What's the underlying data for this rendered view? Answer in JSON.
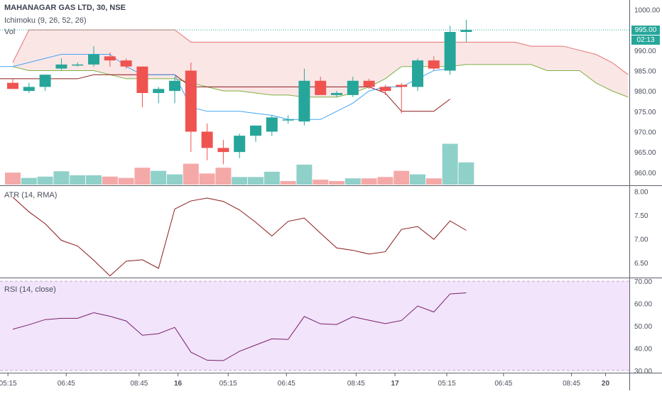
{
  "header": {
    "symbol": "MAHANAGAR GAS LTD, 30, NSE",
    "ichimoku": "Ichimoku (9, 26, 52, 26)",
    "volume": "Vol",
    "atr": "ATR (14, RMA)",
    "rsi": "RSI (14, close)"
  },
  "price_badge": "995.00",
  "countdown_badge": "02:13",
  "colors": {
    "up": "#26a69a",
    "down": "#ef5350",
    "cloud": "#fbe3e3",
    "ichimoku_red": "#e57373",
    "ichimoku_green": "#7cb342",
    "conversion_blue": "#42a5f5",
    "base_dark": "#8b1a1a",
    "atr_line": "#8b1a1a",
    "rsi_line": "#7b1f6a",
    "rsi_band": "#f1e4fb"
  },
  "chart_data": [
    {
      "type": "candlestick",
      "title": "MAHANAGAR GAS LTD, 30, NSE",
      "ylim": [
        957,
        1002
      ],
      "y_ticks": [
        "1000.00",
        "995.00",
        "990.00",
        "985.00",
        "980.00",
        "975.00",
        "970.00",
        "965.00",
        "960.00"
      ],
      "x_ticks": [
        "05:15",
        "06:45",
        "08:45",
        "16",
        "05:15",
        "06:45",
        "08:45",
        "17",
        "05:15",
        "06:45",
        "08:45",
        "20"
      ],
      "candles": [
        {
          "o": 982,
          "h": 983,
          "l": 980.5,
          "c": 980.5
        },
        {
          "o": 980,
          "h": 982,
          "l": 979.5,
          "c": 981
        },
        {
          "o": 981,
          "h": 984,
          "l": 980,
          "c": 984
        },
        {
          "o": 985.5,
          "h": 988,
          "l": 985,
          "c": 986.5
        },
        {
          "o": 986.5,
          "h": 987,
          "l": 986,
          "c": 986.5
        },
        {
          "o": 986.5,
          "h": 991,
          "l": 986,
          "c": 989
        },
        {
          "o": 988.5,
          "h": 989.5,
          "l": 986,
          "c": 987.5
        },
        {
          "o": 987.5,
          "h": 988,
          "l": 985.5,
          "c": 986
        },
        {
          "o": 986,
          "h": 986,
          "l": 976,
          "c": 979.5
        },
        {
          "o": 979.5,
          "h": 981,
          "l": 977,
          "c": 980.5
        },
        {
          "o": 980,
          "h": 983.5,
          "l": 977,
          "c": 982.5
        },
        {
          "o": 985,
          "h": 987,
          "l": 965,
          "c": 970
        },
        {
          "o": 970,
          "h": 972,
          "l": 963,
          "c": 966
        },
        {
          "o": 966,
          "h": 968,
          "l": 962,
          "c": 965
        },
        {
          "o": 965,
          "h": 969.5,
          "l": 963.5,
          "c": 969
        },
        {
          "o": 969,
          "h": 971.5,
          "l": 967.5,
          "c": 971.5
        },
        {
          "o": 970,
          "h": 974,
          "l": 969,
          "c": 973.5
        },
        {
          "o": 973,
          "h": 974,
          "l": 972,
          "c": 973
        },
        {
          "o": 972.5,
          "h": 985.5,
          "l": 971.5,
          "c": 982.5
        },
        {
          "o": 982.5,
          "h": 983.5,
          "l": 979,
          "c": 979
        },
        {
          "o": 979,
          "h": 980,
          "l": 978.5,
          "c": 979.5
        },
        {
          "o": 979,
          "h": 983.5,
          "l": 978.5,
          "c": 982.5
        },
        {
          "o": 982.5,
          "h": 983,
          "l": 980.5,
          "c": 981
        },
        {
          "o": 981,
          "h": 981.5,
          "l": 979,
          "c": 980
        },
        {
          "o": 981.5,
          "h": 982,
          "l": 974.5,
          "c": 981
        },
        {
          "o": 981,
          "h": 988,
          "l": 980,
          "c": 987.5
        },
        {
          "o": 987.5,
          "h": 988.5,
          "l": 985,
          "c": 985.5
        },
        {
          "o": 985,
          "h": 996,
          "l": 984,
          "c": 994.5
        },
        {
          "o": 994.5,
          "h": 997.5,
          "l": 992,
          "c": 995
        }
      ],
      "volume": [
        2.7,
        1.5,
        1.8,
        3.0,
        2.1,
        2.1,
        1.8,
        1.5,
        3.8,
        3.1,
        2.3,
        4.7,
        2.5,
        3.8,
        1.7,
        1.7,
        2.9,
        0.8,
        4.5,
        1.1,
        0.8,
        1.4,
        1.4,
        1.7,
        3.1,
        2.3,
        1.4,
        9.2,
        5.0
      ],
      "volume_up": [
        false,
        true,
        true,
        true,
        true,
        true,
        false,
        false,
        false,
        true,
        true,
        false,
        false,
        false,
        true,
        true,
        true,
        false,
        true,
        false,
        false,
        true,
        false,
        false,
        false,
        true,
        false,
        true,
        true
      ]
    },
    {
      "type": "line",
      "title": "ATR (14, RMA)",
      "ylim": [
        6.2,
        8.1
      ],
      "y_ticks": [
        "8.00",
        "7.50",
        "7.00",
        "6.50"
      ],
      "values": [
        7.88,
        7.57,
        7.32,
        6.97,
        6.85,
        6.55,
        6.22,
        6.53,
        6.56,
        6.38,
        7.63,
        7.8,
        7.86,
        7.79,
        7.61,
        7.35,
        7.06,
        7.37,
        7.44,
        7.12,
        6.81,
        6.76,
        6.68,
        6.73,
        7.2,
        7.26,
        6.99,
        7.38,
        7.18
      ]
    },
    {
      "type": "line",
      "title": "RSI (14, close)",
      "ylim": [
        29,
        71
      ],
      "y_ticks": [
        "70.00",
        "60.00",
        "50.00",
        "40.00",
        "30.00"
      ],
      "values": [
        48.5,
        50.5,
        52.8,
        53.4,
        53.4,
        55.9,
        54.3,
        52.2,
        45.8,
        46.5,
        49.3,
        38.2,
        34.6,
        34.4,
        38.6,
        41.4,
        44.2,
        43.9,
        54.2,
        50.9,
        50.6,
        54.1,
        52.5,
        51.0,
        52.4,
        58.9,
        56.2,
        64.3,
        64.8
      ]
    }
  ]
}
